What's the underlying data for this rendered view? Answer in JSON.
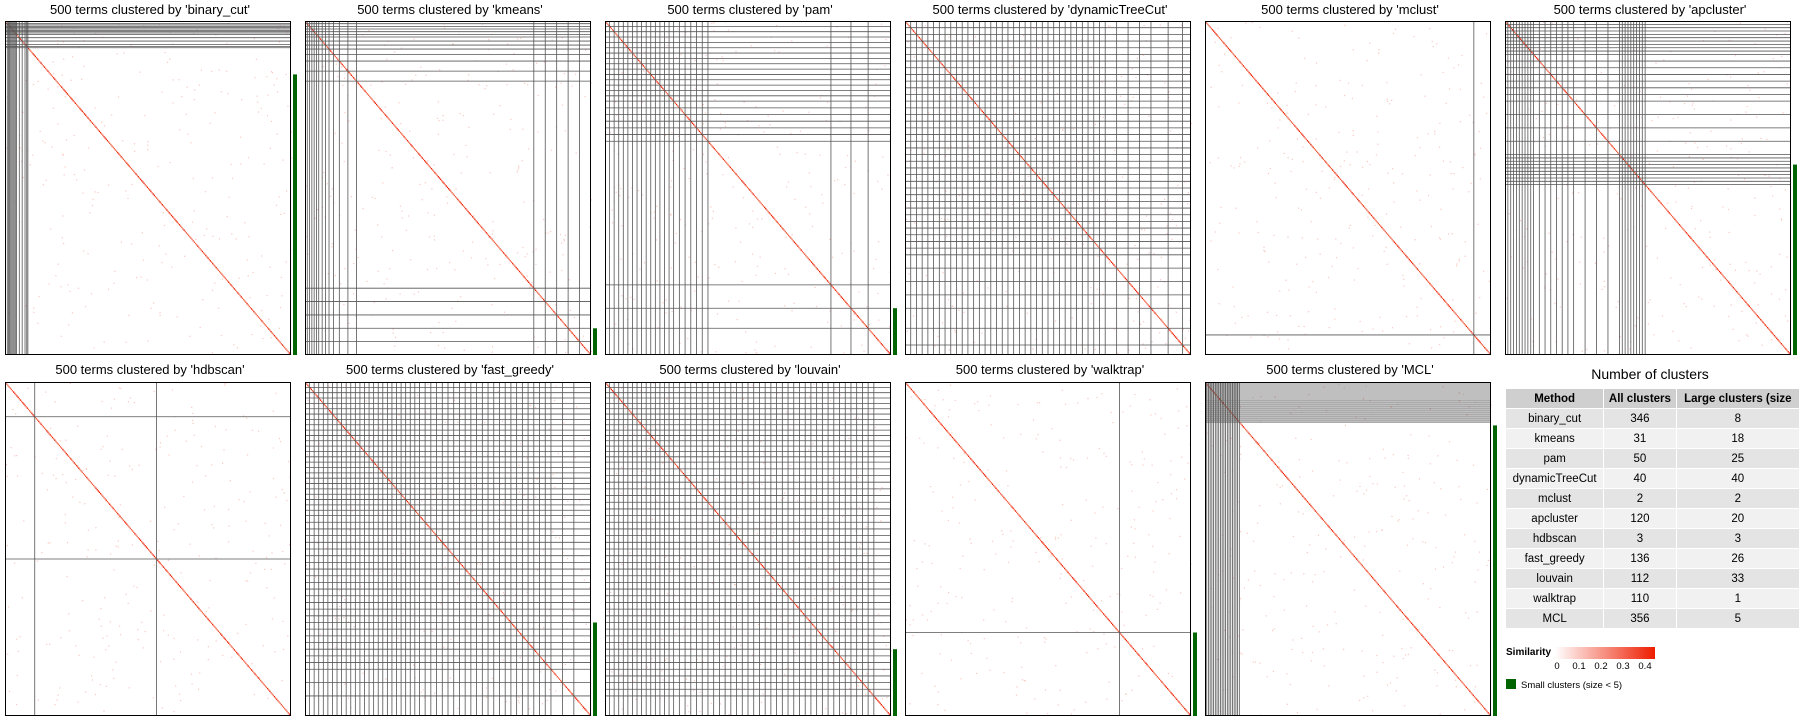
{
  "colors": {
    "accent": "#ee1d00",
    "small_cluster": "#006400",
    "border": "#000000"
  },
  "heatmaps": [
    {
      "method": "binary_cut",
      "title": "500 terms clustered by 'binary_cut'",
      "blocks": [
        4,
        6,
        8,
        10,
        12,
        14,
        16,
        18,
        20,
        25,
        30,
        35,
        38,
        40
      ],
      "small_fraction": 0.84
    },
    {
      "method": "kmeans",
      "title": "500 terms clustered by 'kmeans'",
      "blocks": [
        4,
        8,
        12,
        16,
        20,
        24,
        30,
        36,
        42,
        50,
        60,
        75,
        90,
        400,
        420,
        440,
        460,
        480
      ],
      "small_fraction": 0.08
    },
    {
      "method": "pam",
      "title": "500 terms clustered by 'pam'",
      "blocks": [
        8,
        16,
        24,
        32,
        40,
        48,
        56,
        64,
        72,
        80,
        88,
        96,
        104,
        112,
        120,
        130,
        140,
        150,
        160,
        170,
        180,
        395,
        430,
        460
      ],
      "small_fraction": 0.14
    },
    {
      "method": "dynamicTreeCut",
      "title": "500 terms clustered by 'dynamicTreeCut'",
      "blocks": [
        10,
        20,
        30,
        40,
        50,
        60,
        70,
        80,
        90,
        100,
        110,
        120,
        130,
        140,
        150,
        160,
        170,
        180,
        190,
        200,
        210,
        220,
        230,
        240,
        250,
        260,
        270,
        280,
        290,
        300,
        310,
        320,
        330,
        340,
        350,
        370,
        390,
        410,
        430,
        460,
        485
      ],
      "small_fraction": 0.0
    },
    {
      "method": "mclust",
      "title": "500 terms clustered by 'mclust'",
      "blocks": [
        470
      ],
      "small_fraction": 0.0
    },
    {
      "method": "apcluster",
      "title": "500 terms clustered by 'apcluster'",
      "blocks": [
        5,
        10,
        15,
        20,
        25,
        30,
        35,
        40,
        45,
        50,
        60,
        70,
        80,
        90,
        100,
        110,
        120,
        140,
        160,
        180,
        200,
        205,
        210,
        215,
        220,
        225,
        230,
        235,
        240,
        245
      ],
      "small_fraction": 0.57
    },
    {
      "method": "hdbscan",
      "title": "500 terms clustered by 'hdbscan'",
      "blocks": [
        52,
        265
      ],
      "small_fraction": 0.0
    },
    {
      "method": "fast_greedy",
      "title": "500 terms clustered by 'fast_greedy'",
      "blocks": [
        8,
        16,
        24,
        32,
        40,
        48,
        56,
        64,
        72,
        80,
        88,
        96,
        104,
        112,
        120,
        128,
        136,
        144,
        152,
        160,
        168,
        176,
        184,
        192,
        200,
        210,
        220,
        230,
        240,
        250,
        260,
        270,
        280,
        290,
        300,
        310,
        320,
        330,
        340,
        350,
        360,
        370,
        380,
        390,
        400,
        410,
        420,
        430,
        450,
        470
      ],
      "small_fraction": 0.28
    },
    {
      "method": "louvain",
      "title": "500 terms clustered by 'louvain'",
      "blocks": [
        8,
        16,
        24,
        32,
        40,
        48,
        56,
        64,
        72,
        80,
        88,
        96,
        104,
        112,
        120,
        130,
        140,
        150,
        160,
        170,
        180,
        190,
        200,
        210,
        220,
        230,
        240,
        250,
        260,
        270,
        280,
        290,
        300,
        310,
        320,
        330,
        340,
        350,
        360,
        370,
        380,
        390,
        400,
        410,
        420,
        430,
        440,
        450,
        460,
        470
      ],
      "small_fraction": 0.2
    },
    {
      "method": "walktrap",
      "title": "500 terms clustered by 'walktrap'",
      "blocks": [
        375
      ],
      "small_fraction": 0.25
    },
    {
      "method": "MCL",
      "title": "500 terms clustered by 'MCL'",
      "blocks": [
        3,
        6,
        9,
        12,
        15,
        18,
        21,
        24,
        27,
        30,
        33,
        36,
        39,
        42,
        45,
        48,
        51,
        54,
        57,
        60
      ],
      "small_fraction": 0.87
    }
  ],
  "table": {
    "title": "Number of clusters",
    "headers": [
      "Method",
      "All clusters",
      "Large clusters (size"
    ],
    "rows": [
      [
        "binary_cut",
        "346",
        "8"
      ],
      [
        "kmeans",
        "31",
        "18"
      ],
      [
        "pam",
        "50",
        "25"
      ],
      [
        "dynamicTreeCut",
        "40",
        "40"
      ],
      [
        "mclust",
        "2",
        "2"
      ],
      [
        "apcluster",
        "120",
        "20"
      ],
      [
        "hdbscan",
        "3",
        "3"
      ],
      [
        "fast_greedy",
        "136",
        "26"
      ],
      [
        "louvain",
        "112",
        "33"
      ],
      [
        "walktrap",
        "110",
        "1"
      ],
      [
        "MCL",
        "356",
        "5"
      ]
    ]
  },
  "legend": {
    "similarity_title": "Similarity",
    "ticks": [
      "0",
      "0.1",
      "0.2",
      "0.3",
      "0.4"
    ],
    "small_clusters_label": "Small clusters (size < 5)"
  }
}
